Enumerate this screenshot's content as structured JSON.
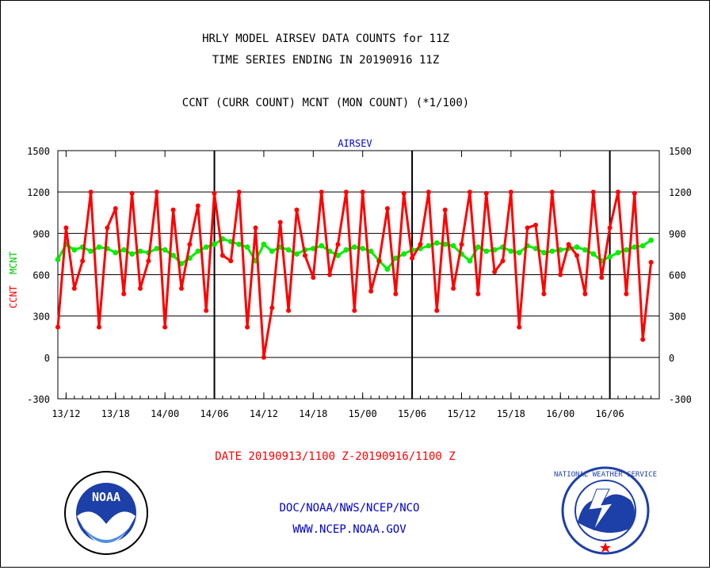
{
  "header": {
    "title1": "HRLY MODEL AIRSEV DATA COUNTS for 11Z",
    "title2": "TIME SERIES ENDING IN 20190916 11Z",
    "subtitle": "CCNT (CURR COUNT) MCNT (MON COUNT) (*1/100)"
  },
  "footer": {
    "date_range": "DATE 20190913/1100 Z-20190916/1100 Z",
    "agency": "DOC/NOAA/NWS/NCEP/NCO",
    "website": "WWW.NCEP.NOAA.GOV"
  },
  "logos": {
    "noaa_text": "NOAA",
    "nws_text": "NATIONAL WEATHER SERVICE"
  },
  "colors": {
    "ccnt": "#ff0000",
    "mcnt": "#00ee00",
    "label_blue": "#0000cc"
  },
  "chart_data": {
    "type": "line",
    "title": "AIRSEV",
    "ylabel_left_ccnt": "CCNT",
    "ylabel_left_mcnt": "MCNT",
    "ylim": [
      -300,
      1500
    ],
    "yticks": [
      -300,
      0,
      300,
      600,
      900,
      1200,
      1500
    ],
    "yticklabels": [
      "-300",
      "0",
      "300",
      "600",
      "900",
      "1200",
      "1500"
    ],
    "xlim_hours": [
      0,
      73
    ],
    "xticks_hours": [
      1,
      7,
      13,
      19,
      25,
      31,
      37,
      43,
      49,
      55,
      61,
      67
    ],
    "xticklabels": [
      "13/12",
      "13/18",
      "14/00",
      "14/06",
      "14/12",
      "14/18",
      "15/00",
      "15/06",
      "15/12",
      "15/18",
      "16/00",
      "16/06"
    ],
    "day_separators_hours": [
      19,
      43,
      67
    ],
    "grid": true,
    "series": [
      {
        "name": "CCNT",
        "values": [
          220,
          940,
          500,
          700,
          1200,
          220,
          940,
          1080,
          460,
          1190,
          500,
          700,
          1200,
          220,
          1070,
          500,
          820,
          1100,
          340,
          1190,
          740,
          700,
          1200,
          220,
          940,
          0,
          360,
          980,
          340,
          1070,
          740,
          580,
          1200,
          600,
          820,
          1200,
          340,
          1200,
          480,
          700,
          1080,
          460,
          1190,
          720,
          820,
          1200,
          340,
          1070,
          500,
          820,
          1200,
          460,
          1190,
          620,
          700,
          1200,
          220,
          940,
          960,
          460,
          1200,
          600,
          820,
          740,
          460,
          1200,
          580,
          940,
          1200,
          460,
          1190,
          130,
          690
        ]
      },
      {
        "name": "MCNT",
        "values": [
          710,
          820,
          780,
          800,
          770,
          800,
          790,
          760,
          780,
          750,
          770,
          760,
          790,
          780,
          740,
          680,
          720,
          770,
          800,
          820,
          860,
          840,
          820,
          800,
          700,
          820,
          770,
          800,
          780,
          750,
          780,
          790,
          810,
          770,
          740,
          780,
          800,
          790,
          770,
          700,
          640,
          720,
          750,
          780,
          790,
          810,
          830,
          820,
          810,
          750,
          700,
          800,
          770,
          780,
          800,
          770,
          760,
          810,
          790,
          760,
          770,
          780,
          790,
          800,
          780,
          750,
          700,
          730,
          760,
          780,
          800,
          810,
          850
        ]
      }
    ]
  }
}
